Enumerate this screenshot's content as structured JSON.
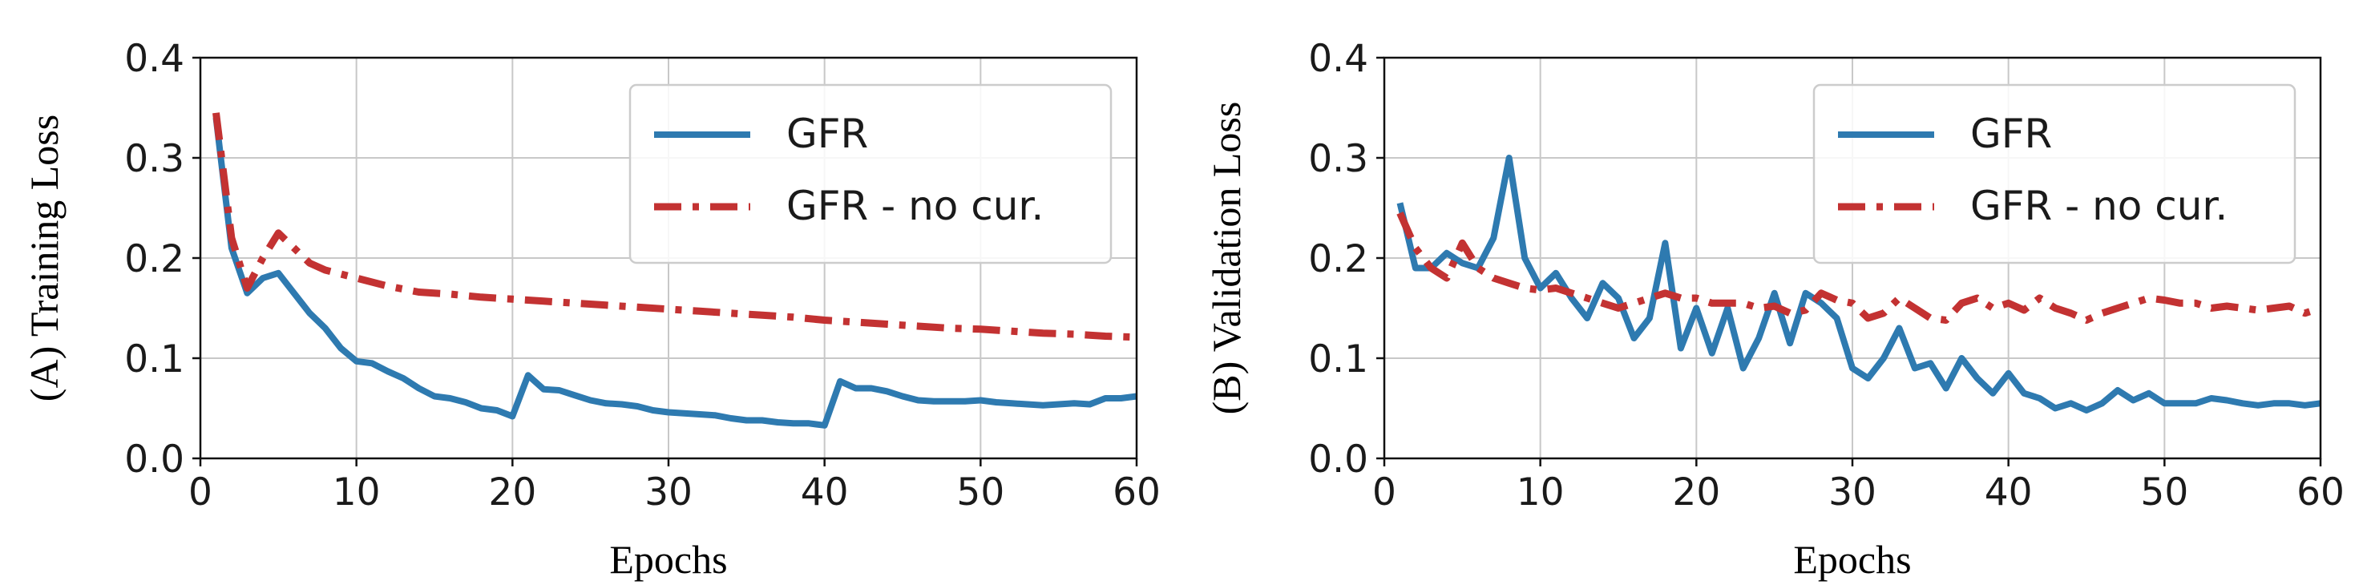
{
  "chart_data": [
    {
      "type": "line",
      "xlabel": "Epochs",
      "ylabel": "(A) Training Loss",
      "xlim": [
        0,
        60
      ],
      "ylim": [
        0.0,
        0.4
      ],
      "xticks": [
        0,
        10,
        20,
        30,
        40,
        50,
        60
      ],
      "yticks": [
        0.0,
        0.1,
        0.2,
        0.3,
        0.4
      ],
      "xtick_labels": [
        "0",
        "10",
        "20",
        "30",
        "40",
        "50",
        "60"
      ],
      "ytick_labels": [
        "0.0",
        "0.1",
        "0.2",
        "0.3",
        "0.4"
      ],
      "grid": true,
      "legend_position": "top-right",
      "series": [
        {
          "name": "GFR",
          "style": "solid",
          "color": "#2e7ab0",
          "x": [
            1,
            2,
            3,
            4,
            5,
            6,
            7,
            8,
            9,
            10,
            11,
            12,
            13,
            14,
            15,
            16,
            17,
            18,
            19,
            20,
            21,
            22,
            23,
            24,
            25,
            26,
            27,
            28,
            29,
            30,
            31,
            32,
            33,
            34,
            35,
            36,
            37,
            38,
            39,
            40,
            41,
            42,
            43,
            44,
            45,
            46,
            47,
            48,
            49,
            50,
            51,
            52,
            53,
            54,
            55,
            56,
            57,
            58,
            59,
            60
          ],
          "y": [
            0.34,
            0.21,
            0.165,
            0.18,
            0.185,
            0.165,
            0.145,
            0.13,
            0.11,
            0.097,
            0.095,
            0.087,
            0.08,
            0.07,
            0.062,
            0.06,
            0.056,
            0.05,
            0.048,
            0.042,
            0.083,
            0.069,
            0.068,
            0.063,
            0.058,
            0.055,
            0.054,
            0.052,
            0.048,
            0.046,
            0.045,
            0.044,
            0.043,
            0.04,
            0.038,
            0.038,
            0.036,
            0.035,
            0.035,
            0.033,
            0.077,
            0.07,
            0.07,
            0.067,
            0.062,
            0.058,
            0.057,
            0.057,
            0.057,
            0.058,
            0.056,
            0.055,
            0.054,
            0.053,
            0.054,
            0.055,
            0.054,
            0.06,
            0.06,
            0.062
          ]
        },
        {
          "name": "GFR - no cur.",
          "style": "dashdot",
          "color": "#c33232",
          "x": [
            1,
            2,
            3,
            4,
            5,
            6,
            7,
            8,
            10,
            12,
            14,
            16,
            18,
            20,
            22,
            24,
            26,
            28,
            30,
            32,
            34,
            36,
            38,
            40,
            42,
            44,
            46,
            48,
            50,
            52,
            54,
            56,
            58,
            60
          ],
          "y": [
            0.345,
            0.22,
            0.17,
            0.2,
            0.225,
            0.21,
            0.195,
            0.188,
            0.18,
            0.172,
            0.166,
            0.164,
            0.161,
            0.159,
            0.157,
            0.155,
            0.153,
            0.151,
            0.149,
            0.147,
            0.145,
            0.143,
            0.141,
            0.138,
            0.136,
            0.134,
            0.132,
            0.13,
            0.129,
            0.127,
            0.125,
            0.124,
            0.122,
            0.121
          ]
        }
      ]
    },
    {
      "type": "line",
      "xlabel": "Epochs",
      "ylabel": "(B) Validation Loss",
      "xlim": [
        0,
        60
      ],
      "ylim": [
        0.0,
        0.4
      ],
      "xticks": [
        0,
        10,
        20,
        30,
        40,
        50,
        60
      ],
      "yticks": [
        0.0,
        0.1,
        0.2,
        0.3,
        0.4
      ],
      "xtick_labels": [
        "0",
        "10",
        "20",
        "30",
        "40",
        "50",
        "60"
      ],
      "ytick_labels": [
        "0.0",
        "0.1",
        "0.2",
        "0.3",
        "0.4"
      ],
      "grid": true,
      "legend_position": "top-right",
      "series": [
        {
          "name": "GFR",
          "style": "solid",
          "color": "#2e7ab0",
          "x": [
            1,
            2,
            3,
            4,
            5,
            6,
            7,
            8,
            9,
            10,
            11,
            12,
            13,
            14,
            15,
            16,
            17,
            18,
            19,
            20,
            21,
            22,
            23,
            24,
            25,
            26,
            27,
            28,
            29,
            30,
            31,
            32,
            33,
            34,
            35,
            36,
            37,
            38,
            39,
            40,
            41,
            42,
            43,
            44,
            45,
            46,
            47,
            48,
            49,
            50,
            51,
            52,
            53,
            54,
            55,
            56,
            57,
            58,
            59,
            60
          ],
          "y": [
            0.255,
            0.19,
            0.19,
            0.205,
            0.195,
            0.19,
            0.22,
            0.3,
            0.2,
            0.17,
            0.185,
            0.16,
            0.14,
            0.175,
            0.16,
            0.12,
            0.14,
            0.215,
            0.11,
            0.15,
            0.105,
            0.15,
            0.09,
            0.12,
            0.165,
            0.115,
            0.165,
            0.155,
            0.14,
            0.09,
            0.08,
            0.1,
            0.13,
            0.09,
            0.095,
            0.07,
            0.1,
            0.08,
            0.065,
            0.085,
            0.065,
            0.06,
            0.05,
            0.055,
            0.048,
            0.055,
            0.068,
            0.058,
            0.065,
            0.055,
            0.055,
            0.055,
            0.06,
            0.058,
            0.055,
            0.053,
            0.055,
            0.055,
            0.053,
            0.055
          ]
        },
        {
          "name": "GFR - no cur.",
          "style": "dashdot",
          "color": "#c33232",
          "x": [
            1,
            2,
            3,
            4,
            5,
            6,
            7,
            8,
            9,
            10,
            11,
            12,
            13,
            14,
            15,
            16,
            17,
            18,
            19,
            20,
            21,
            22,
            23,
            24,
            25,
            26,
            27,
            28,
            29,
            30,
            31,
            32,
            33,
            34,
            35,
            36,
            37,
            38,
            39,
            40,
            41,
            42,
            43,
            44,
            45,
            46,
            47,
            48,
            49,
            50,
            51,
            52,
            53,
            54,
            55,
            56,
            57,
            58,
            59,
            60
          ],
          "y": [
            0.245,
            0.21,
            0.19,
            0.18,
            0.215,
            0.19,
            0.18,
            0.175,
            0.17,
            0.168,
            0.17,
            0.165,
            0.16,
            0.155,
            0.15,
            0.155,
            0.16,
            0.165,
            0.16,
            0.16,
            0.155,
            0.155,
            0.155,
            0.15,
            0.152,
            0.145,
            0.148,
            0.165,
            0.158,
            0.155,
            0.14,
            0.145,
            0.16,
            0.15,
            0.14,
            0.138,
            0.155,
            0.16,
            0.15,
            0.155,
            0.148,
            0.16,
            0.15,
            0.145,
            0.138,
            0.145,
            0.15,
            0.155,
            0.16,
            0.158,
            0.155,
            0.155,
            0.15,
            0.152,
            0.15,
            0.148,
            0.15,
            0.152,
            0.145,
            0.15
          ]
        }
      ]
    }
  ]
}
